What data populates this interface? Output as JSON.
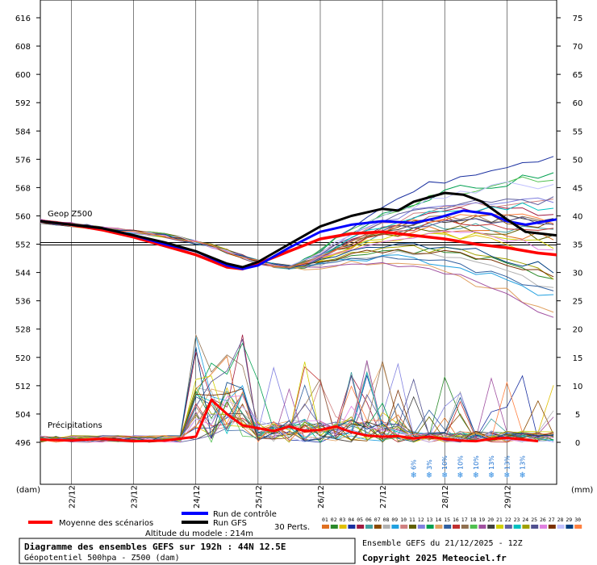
{
  "chart_data": {
    "type": "line",
    "left_axis": {
      "unit_label": "(dam)",
      "ticks": [
        616,
        608,
        600,
        592,
        584,
        576,
        568,
        560,
        552,
        544,
        536,
        528,
        520,
        512,
        504,
        496
      ],
      "range": [
        496,
        616
      ]
    },
    "right_axis": {
      "unit_label": "(mm)",
      "ticks": [
        75,
        70,
        65,
        60,
        55,
        50,
        45,
        40,
        35,
        30,
        25,
        20,
        15,
        10,
        5,
        0
      ],
      "range": [
        0,
        75
      ]
    },
    "x_ticks": [
      "22/12",
      "23/12",
      "24/12",
      "25/12",
      "26/12",
      "27/12",
      "28/12",
      "29/12"
    ],
    "x_range_days": [
      21.5,
      29.8
    ],
    "reference_line": 552,
    "geop_label": "Geop Z500",
    "precip_label": "Précipitations",
    "snow_percentages": [
      {
        "x": 27.5,
        "text": "6%"
      },
      {
        "x": 27.75,
        "text": "3%"
      },
      {
        "x": 28.0,
        "text": "10%"
      },
      {
        "x": 28.25,
        "text": "10%"
      },
      {
        "x": 28.5,
        "text": "10%"
      },
      {
        "x": 28.75,
        "text": "13%"
      },
      {
        "x": 29.0,
        "text": "13%"
      },
      {
        "x": 29.25,
        "text": "13%"
      }
    ],
    "series": [
      {
        "name": "Moyenne des scénarios",
        "color": "#ff0000",
        "width": 3.5,
        "kind": "geo",
        "points": [
          [
            21.5,
            558.5
          ],
          [
            22,
            557.5
          ],
          [
            22.5,
            556
          ],
          [
            23,
            554
          ],
          [
            23.5,
            551.5
          ],
          [
            24,
            549
          ],
          [
            24.5,
            545.5
          ],
          [
            24.75,
            545
          ],
          [
            25,
            546.5
          ],
          [
            25.5,
            550
          ],
          [
            26,
            553.5
          ],
          [
            26.5,
            555
          ],
          [
            27,
            555.5
          ],
          [
            27.5,
            554.5
          ],
          [
            28,
            553.5
          ],
          [
            28.5,
            552
          ],
          [
            29,
            551
          ],
          [
            29.5,
            549.5
          ],
          [
            29.8,
            549
          ]
        ]
      },
      {
        "name": "Run de contrôle",
        "color": "#0000ff",
        "width": 3,
        "kind": "geo",
        "points": [
          [
            21.5,
            558.5
          ],
          [
            22,
            557.5
          ],
          [
            22.5,
            556.5
          ],
          [
            23,
            554.5
          ],
          [
            23.5,
            552
          ],
          [
            24,
            550
          ],
          [
            24.5,
            546
          ],
          [
            24.75,
            545
          ],
          [
            25,
            546
          ],
          [
            25.5,
            551
          ],
          [
            26,
            555.5
          ],
          [
            26.5,
            557.5
          ],
          [
            27,
            558.5
          ],
          [
            27.5,
            558
          ],
          [
            27.9,
            559.5
          ],
          [
            28.3,
            561.5
          ],
          [
            28.75,
            560.5
          ],
          [
            29,
            558.5
          ],
          [
            29.3,
            557.5
          ],
          [
            29.8,
            559
          ]
        ]
      },
      {
        "name": "Run GFS",
        "color": "#000000",
        "width": 3,
        "kind": "geo",
        "points": [
          [
            21.5,
            558.5
          ],
          [
            22,
            557.5
          ],
          [
            22.5,
            556.5
          ],
          [
            23,
            554.5
          ],
          [
            23.5,
            552.5
          ],
          [
            24,
            550
          ],
          [
            24.5,
            546.5
          ],
          [
            24.75,
            545.5
          ],
          [
            25,
            547
          ],
          [
            25.5,
            552
          ],
          [
            26,
            557
          ],
          [
            26.5,
            560
          ],
          [
            27,
            562
          ],
          [
            27.25,
            561.5
          ],
          [
            27.5,
            564
          ],
          [
            28,
            566.5
          ],
          [
            28.3,
            566
          ],
          [
            28.6,
            564
          ],
          [
            29,
            559
          ],
          [
            29.3,
            555.5
          ],
          [
            29.8,
            554.5
          ]
        ]
      },
      {
        "name": "",
        "color": "#ff0000",
        "width": 3,
        "kind": "precip",
        "points": [
          [
            21.5,
            0.5
          ],
          [
            22,
            0.3
          ],
          [
            22.5,
            0.6
          ],
          [
            23,
            0.2
          ],
          [
            23.5,
            0.3
          ],
          [
            24,
            1
          ],
          [
            24.25,
            7.5
          ],
          [
            24.5,
            5
          ],
          [
            24.75,
            3
          ],
          [
            25,
            2.5
          ],
          [
            25.25,
            2
          ],
          [
            25.5,
            2.8
          ],
          [
            25.75,
            2
          ],
          [
            26,
            2.2
          ],
          [
            26.25,
            2.8
          ],
          [
            26.5,
            1.8
          ],
          [
            26.75,
            1.2
          ],
          [
            27,
            1
          ],
          [
            27.25,
            1.1
          ],
          [
            27.5,
            0.7
          ],
          [
            27.75,
            1
          ],
          [
            28,
            0.6
          ],
          [
            28.25,
            0.3
          ],
          [
            28.5,
            0.2
          ],
          [
            28.75,
            0.6
          ],
          [
            29,
            0.8
          ],
          [
            29.25,
            0.5
          ],
          [
            29.5,
            0.2
          ]
        ]
      }
    ]
  },
  "legend": {
    "mean": "Moyenne des scénarios",
    "control": "Run de contrôle",
    "gfs": "Run GFS",
    "perts": "30 Perts.",
    "pert_numbers": [
      "01",
      "02",
      "03",
      "04",
      "05",
      "06",
      "07",
      "08",
      "09",
      "10",
      "11",
      "12",
      "13",
      "14",
      "15",
      "16",
      "17",
      "18",
      "19",
      "20",
      "21",
      "22",
      "23",
      "24",
      "25",
      "26",
      "27",
      "28",
      "29",
      "30"
    ],
    "pert_colors": [
      "#e07020",
      "#2a8a2a",
      "#e0c000",
      "#1a30a0",
      "#a01a40",
      "#40a0a0",
      "#8a4a00",
      "#b0b0b0",
      "#20a0e0",
      "#d08080",
      "#606000",
      "#8080e0",
      "#00a050",
      "#e0a060",
      "#3060a0",
      "#c03030",
      "#907050",
      "#50c050",
      "#a050a0",
      "#404040",
      "#d0d000",
      "#6060a0",
      "#00c0c0",
      "#a0a000",
      "#505090",
      "#e080e0",
      "#7a3000",
      "#c0c0ff",
      "#004080",
      "#ff8040"
    ],
    "altitude": "Altitude du modele : 214m"
  },
  "footer": {
    "title_line1": "Diagramme des ensembles GEFS sur 192h : 44N 12.5E",
    "title_line2": "Géopotentiel 500hpa - Z500 (dam)",
    "ensemble": "Ensemble GEFS du 21/12/2025 - 12Z",
    "copyright": "Copyright 2025 Meteociel.fr"
  }
}
